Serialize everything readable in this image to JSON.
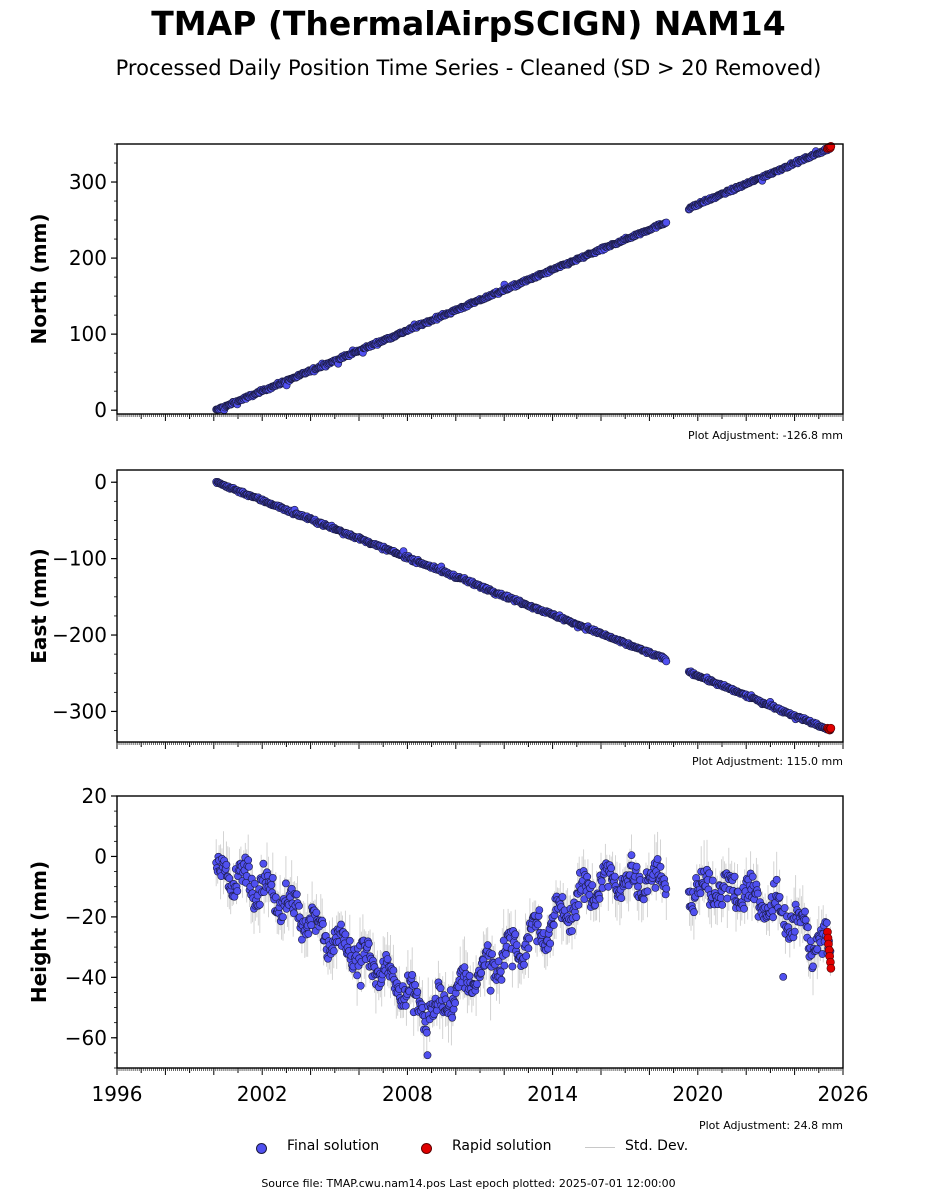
{
  "title": "TMAP (ThermalAirpSCIGN) NAM14",
  "subtitle": "Processed Daily Position Time Series - Cleaned (SD > 20 Removed)",
  "colors": {
    "final": "#5050f0",
    "final_edge": "#1a1a40",
    "rapid": "#e00000",
    "std": "#a0a0a0",
    "axis": "#000000"
  },
  "legend": {
    "final": "Final solution",
    "rapid": "Rapid solution",
    "std": "Std. Dev."
  },
  "source": "Source file: TMAP.cwu.nam14.pos  Last epoch plotted: 2025-07-01 12:00:00",
  "chart_data": [
    {
      "type": "scatter",
      "ylabel": "North (mm)",
      "adjustment": "Plot Adjustment: -126.8 mm",
      "xlim": [
        1996,
        2026
      ],
      "ylim": [
        -5,
        350
      ],
      "yticks": [
        0,
        100,
        200,
        300
      ],
      "ytick_labels": [
        "0",
        "100",
        "200",
        "300"
      ],
      "xticks": [],
      "xtick_labels": [],
      "start": 2000.1,
      "end": 2025.5,
      "gap": [
        2018.7,
        2019.6
      ],
      "trend": [
        [
          2000.1,
          0
        ],
        [
          2018.7,
          247
        ],
        [
          2019.6,
          265
        ],
        [
          2025.5,
          345
        ]
      ],
      "noise": 2.0,
      "seasonal": 0,
      "rapid": [
        [
          2025.36,
          344
        ],
        [
          2025.4,
          345
        ],
        [
          2025.44,
          346
        ],
        [
          2025.48,
          345
        ],
        [
          2025.5,
          347
        ]
      ]
    },
    {
      "type": "scatter",
      "ylabel": "East (mm)",
      "adjustment": "Plot Adjustment: 115.0 mm",
      "xlim": [
        1996,
        2026
      ],
      "ylim": [
        -340,
        16
      ],
      "yticks": [
        0,
        -100,
        -200,
        -300
      ],
      "ytick_labels": [
        "0",
        "−100",
        "−200",
        "−300"
      ],
      "xticks": [],
      "xtick_labels": [],
      "start": 2000.1,
      "end": 2025.5,
      "gap": [
        2018.7,
        2019.6
      ],
      "trend": [
        [
          2000.1,
          0
        ],
        [
          2018.7,
          -232
        ],
        [
          2019.6,
          -248
        ],
        [
          2025.5,
          -325
        ]
      ],
      "noise": 2.2,
      "seasonal": 0,
      "rapid": [
        [
          2025.36,
          -322
        ],
        [
          2025.4,
          -323
        ],
        [
          2025.44,
          -324
        ],
        [
          2025.48,
          -323
        ],
        [
          2025.5,
          -322
        ]
      ]
    },
    {
      "type": "scatter",
      "ylabel": "Height (mm)",
      "adjustment": "Plot Adjustment: 24.8 mm",
      "xlim": [
        1996,
        2026
      ],
      "ylim": [
        -70,
        20
      ],
      "yticks": [
        20,
        0,
        -20,
        -40,
        -60
      ],
      "ytick_labels": [
        "20",
        "0",
        "−20",
        "−40",
        "−60"
      ],
      "xticks": [
        1996,
        2002,
        2008,
        2014,
        2020,
        2026
      ],
      "xtick_labels": [
        "1996",
        "2002",
        "2008",
        "2014",
        "2020",
        "2026"
      ],
      "start": 2000.1,
      "end": 2025.5,
      "gap": [
        2018.7,
        2019.6
      ],
      "trend": [
        [
          2000.1,
          -5
        ],
        [
          2002.0,
          -10
        ],
        [
          2004.0,
          -22
        ],
        [
          2006.0,
          -32
        ],
        [
          2008.0,
          -45
        ],
        [
          2009.0,
          -52
        ],
        [
          2010.0,
          -45
        ],
        [
          2012.0,
          -32
        ],
        [
          2014.0,
          -22
        ],
        [
          2016.0,
          -8
        ],
        [
          2018.7,
          -8
        ],
        [
          2019.6,
          -10
        ],
        [
          2022.0,
          -12
        ],
        [
          2024.0,
          -22
        ],
        [
          2025.5,
          -32
        ]
      ],
      "noise": 5.5,
      "seasonal": 4,
      "rapid": [
        [
          2025.36,
          -25
        ],
        [
          2025.38,
          -27
        ],
        [
          2025.4,
          -29
        ],
        [
          2025.43,
          -31
        ],
        [
          2025.45,
          -33
        ],
        [
          2025.48,
          -35
        ],
        [
          2025.5,
          -37
        ]
      ]
    }
  ]
}
